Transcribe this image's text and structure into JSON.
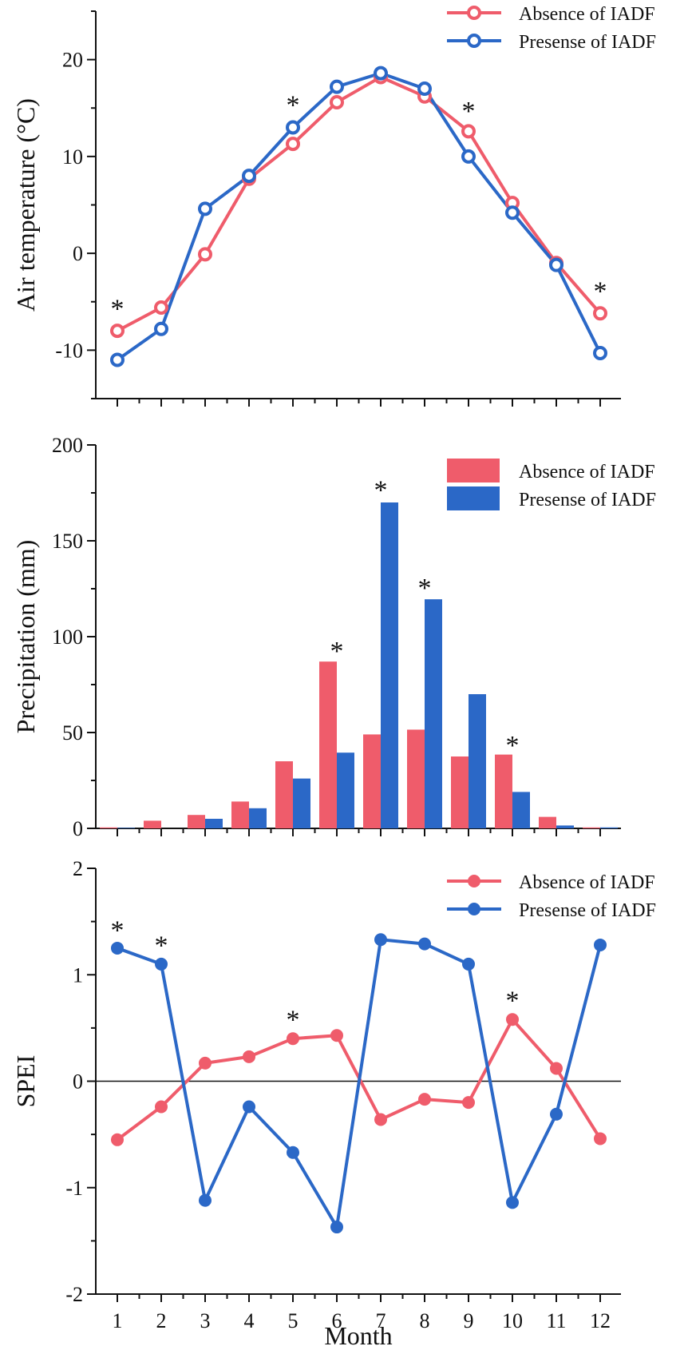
{
  "colors": {
    "absence": "#ef5c6b",
    "presence": "#2b68c7",
    "axis": "#111111"
  },
  "x_title": "Month",
  "chart_data": [
    {
      "id": "temp",
      "type": "line",
      "marker": "open-circle",
      "ylabel": "Air temperature (°C)",
      "ylim": [
        -15,
        25
      ],
      "yticks": [
        -10,
        0,
        10,
        20
      ],
      "categories": [
        "1",
        "2",
        "3",
        "4",
        "5",
        "6",
        "7",
        "8",
        "9",
        "10",
        "11",
        "12"
      ],
      "series": [
        {
          "name": "Absence of IADF",
          "values": [
            -8.0,
            -5.6,
            -0.1,
            7.7,
            11.3,
            15.6,
            18.2,
            16.2,
            12.6,
            5.2,
            -1.0,
            -6.2
          ]
        },
        {
          "name": "Presense of IADF",
          "values": [
            -11.0,
            -7.8,
            4.6,
            8.0,
            13.0,
            17.2,
            18.6,
            17.0,
            10.0,
            4.2,
            -1.2,
            -10.3
          ]
        }
      ],
      "annotations": [
        {
          "month": 1,
          "value": -4.8,
          "text": "*"
        },
        {
          "month": 5,
          "value": 16.2,
          "text": "*"
        },
        {
          "month": 9,
          "value": 15.6,
          "text": "*"
        },
        {
          "month": 12,
          "value": -3.0,
          "text": "*"
        }
      ],
      "legend": "top-right"
    },
    {
      "id": "precip",
      "type": "bar",
      "ylabel": "Precipitation (mm)",
      "ylim": [
        0,
        200
      ],
      "yticks": [
        0,
        50,
        100,
        150,
        200
      ],
      "categories": [
        "1",
        "2",
        "3",
        "4",
        "5",
        "6",
        "7",
        "8",
        "9",
        "10",
        "11",
        "12"
      ],
      "series": [
        {
          "name": "Absence of IADF",
          "values": [
            0.5,
            4,
            7,
            14,
            35,
            87,
            49,
            51.5,
            37.5,
            38.5,
            6,
            0.5
          ]
        },
        {
          "name": "Presense of IADF",
          "values": [
            0.3,
            0,
            5,
            10.5,
            26,
            39.5,
            170,
            119.5,
            70,
            19,
            1.5,
            0.5
          ]
        }
      ],
      "annotations": [
        {
          "month": 6,
          "value": 97,
          "text": "*"
        },
        {
          "month": 7,
          "value": 181,
          "text": "*"
        },
        {
          "month": 8,
          "value": 130,
          "text": "*"
        },
        {
          "month": 10,
          "value": 48,
          "text": "*"
        }
      ],
      "legend": "top-right"
    },
    {
      "id": "spei",
      "type": "line",
      "marker": "filled-circle",
      "ylabel": "SPEI",
      "ylim": [
        -2,
        2
      ],
      "yticks": [
        -2,
        -1,
        0,
        1,
        2
      ],
      "reference_line": 0,
      "categories": [
        "1",
        "2",
        "3",
        "4",
        "5",
        "6",
        "7",
        "8",
        "9",
        "10",
        "11",
        "12"
      ],
      "series": [
        {
          "name": "Absence of IADF",
          "values": [
            -0.55,
            -0.24,
            0.17,
            0.23,
            0.4,
            0.43,
            -0.36,
            -0.17,
            -0.2,
            0.58,
            0.12,
            -0.54
          ]
        },
        {
          "name": "Presense of IADF",
          "values": [
            1.25,
            1.1,
            -1.12,
            -0.24,
            -0.67,
            -1.37,
            1.33,
            1.29,
            1.1,
            -1.14,
            -0.31,
            1.28
          ]
        }
      ],
      "annotations": [
        {
          "month": 1,
          "value": 1.5,
          "text": "*"
        },
        {
          "month": 2,
          "value": 1.36,
          "text": "*"
        },
        {
          "month": 5,
          "value": 0.66,
          "text": "*"
        },
        {
          "month": 10,
          "value": 0.84,
          "text": "*"
        }
      ],
      "legend": "top-right"
    }
  ]
}
